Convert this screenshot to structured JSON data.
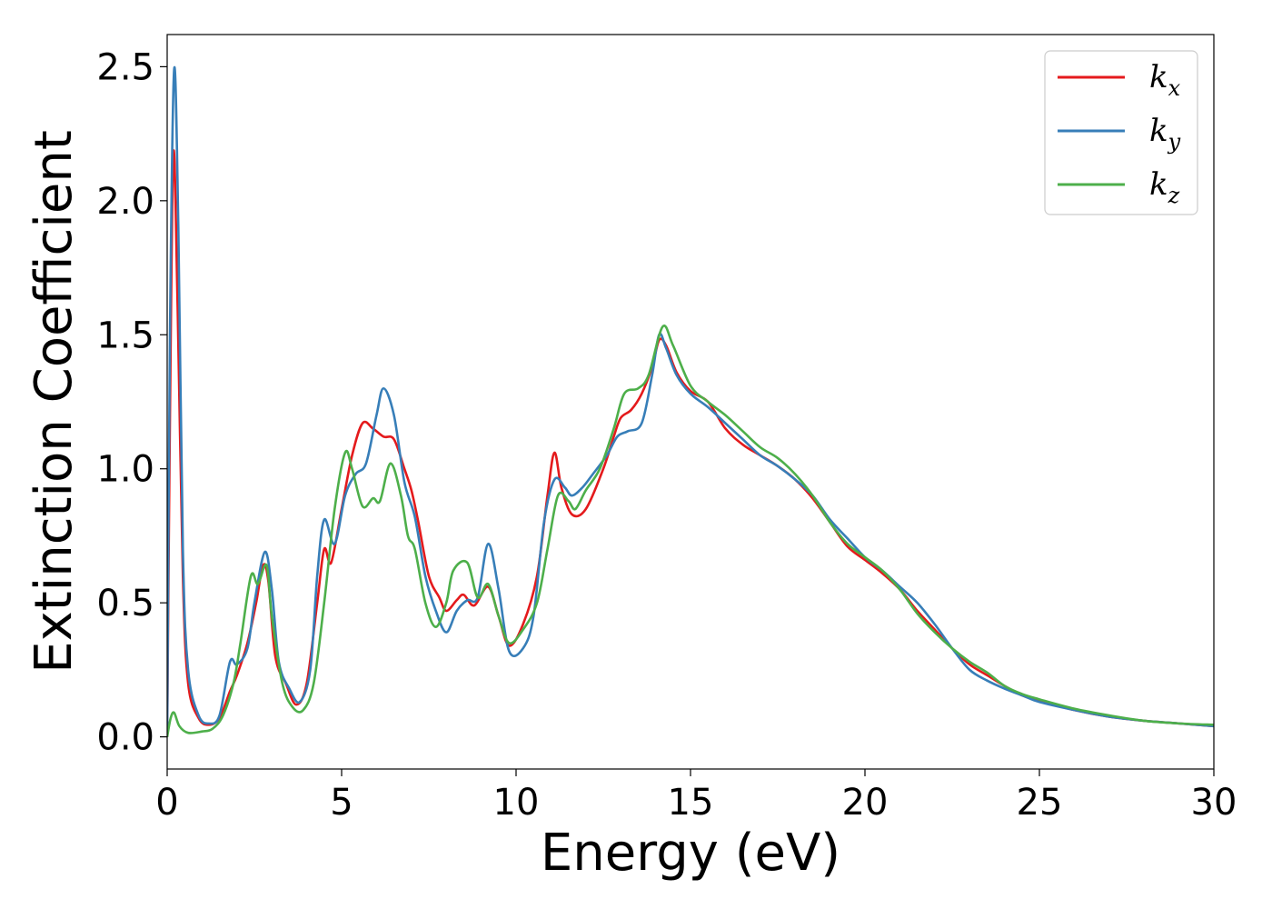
{
  "chart_data": {
    "type": "line",
    "xlabel": "Energy (eV)",
    "ylabel": "Extinction Coefficient",
    "xlim": [
      0,
      30
    ],
    "ylim": [
      -0.12,
      2.62
    ],
    "xticks": [
      0,
      5,
      10,
      15,
      20,
      25,
      30
    ],
    "yticks": [
      0.0,
      0.5,
      1.0,
      1.5,
      2.0,
      2.5
    ],
    "xtick_labels": [
      "0",
      "5",
      "10",
      "15",
      "20",
      "25",
      "30"
    ],
    "ytick_labels": [
      "0.0",
      "0.5",
      "1.0",
      "1.5",
      "2.0",
      "2.5"
    ],
    "grid": false,
    "legend_position": "top-right",
    "series": [
      {
        "name": "k_x",
        "legend_base": "k",
        "legend_sub": "x",
        "color": "#e41a1c",
        "points": [
          [
            0,
            0
          ],
          [
            0.08,
            1.2
          ],
          [
            0.18,
            2.18
          ],
          [
            0.3,
            1.6
          ],
          [
            0.45,
            0.6
          ],
          [
            0.6,
            0.2
          ],
          [
            0.9,
            0.07
          ],
          [
            1.2,
            0.045
          ],
          [
            1.5,
            0.07
          ],
          [
            1.8,
            0.17
          ],
          [
            2.0,
            0.23
          ],
          [
            2.3,
            0.35
          ],
          [
            2.55,
            0.5
          ],
          [
            2.75,
            0.64
          ],
          [
            2.9,
            0.58
          ],
          [
            3.1,
            0.3
          ],
          [
            3.4,
            0.2
          ],
          [
            3.7,
            0.12
          ],
          [
            4.0,
            0.2
          ],
          [
            4.3,
            0.5
          ],
          [
            4.5,
            0.7
          ],
          [
            4.7,
            0.65
          ],
          [
            5.0,
            0.85
          ],
          [
            5.3,
            1.05
          ],
          [
            5.6,
            1.17
          ],
          [
            5.9,
            1.15
          ],
          [
            6.2,
            1.12
          ],
          [
            6.5,
            1.11
          ],
          [
            6.8,
            1.0
          ],
          [
            7.0,
            0.92
          ],
          [
            7.2,
            0.8
          ],
          [
            7.5,
            0.6
          ],
          [
            7.8,
            0.52
          ],
          [
            8.0,
            0.47
          ],
          [
            8.3,
            0.51
          ],
          [
            8.5,
            0.53
          ],
          [
            8.8,
            0.49
          ],
          [
            9.2,
            0.56
          ],
          [
            9.5,
            0.45
          ],
          [
            9.8,
            0.34
          ],
          [
            10.2,
            0.42
          ],
          [
            10.6,
            0.6
          ],
          [
            10.9,
            0.9
          ],
          [
            11.1,
            1.06
          ],
          [
            11.3,
            0.93
          ],
          [
            11.6,
            0.83
          ],
          [
            12.0,
            0.85
          ],
          [
            12.5,
            1.0
          ],
          [
            12.8,
            1.12
          ],
          [
            13.0,
            1.19
          ],
          [
            13.3,
            1.22
          ],
          [
            13.6,
            1.28
          ],
          [
            13.9,
            1.38
          ],
          [
            14.1,
            1.48
          ],
          [
            14.3,
            1.46
          ],
          [
            14.6,
            1.36
          ],
          [
            15.0,
            1.29
          ],
          [
            15.5,
            1.25
          ],
          [
            16.0,
            1.15
          ],
          [
            16.5,
            1.09
          ],
          [
            17.0,
            1.05
          ],
          [
            17.5,
            1.01
          ],
          [
            18.0,
            0.96
          ],
          [
            18.5,
            0.89
          ],
          [
            19.0,
            0.8
          ],
          [
            19.5,
            0.71
          ],
          [
            20.0,
            0.66
          ],
          [
            20.5,
            0.61
          ],
          [
            21.0,
            0.55
          ],
          [
            21.5,
            0.47
          ],
          [
            22.0,
            0.4
          ],
          [
            22.5,
            0.33
          ],
          [
            23.0,
            0.27
          ],
          [
            23.5,
            0.23
          ],
          [
            24.0,
            0.19
          ],
          [
            24.5,
            0.155
          ],
          [
            25.0,
            0.135
          ],
          [
            26.0,
            0.1
          ],
          [
            27.0,
            0.075
          ],
          [
            28.0,
            0.06
          ],
          [
            29.0,
            0.05
          ],
          [
            30.0,
            0.04
          ]
        ]
      },
      {
        "name": "k_y",
        "legend_base": "k",
        "legend_sub": "y",
        "color": "#377eb8",
        "points": [
          [
            0,
            0
          ],
          [
            0.08,
            1.5
          ],
          [
            0.2,
            2.49
          ],
          [
            0.32,
            1.9
          ],
          [
            0.45,
            0.7
          ],
          [
            0.6,
            0.25
          ],
          [
            0.9,
            0.08
          ],
          [
            1.2,
            0.05
          ],
          [
            1.5,
            0.08
          ],
          [
            1.8,
            0.28
          ],
          [
            2.0,
            0.27
          ],
          [
            2.3,
            0.33
          ],
          [
            2.5,
            0.5
          ],
          [
            2.8,
            0.69
          ],
          [
            3.0,
            0.55
          ],
          [
            3.2,
            0.28
          ],
          [
            3.5,
            0.18
          ],
          [
            3.8,
            0.13
          ],
          [
            4.1,
            0.25
          ],
          [
            4.3,
            0.6
          ],
          [
            4.5,
            0.81
          ],
          [
            4.8,
            0.72
          ],
          [
            5.1,
            0.9
          ],
          [
            5.4,
            0.98
          ],
          [
            5.7,
            1.02
          ],
          [
            6.0,
            1.2
          ],
          [
            6.2,
            1.3
          ],
          [
            6.5,
            1.2
          ],
          [
            6.8,
            0.95
          ],
          [
            7.1,
            0.82
          ],
          [
            7.4,
            0.6
          ],
          [
            7.7,
            0.47
          ],
          [
            8.0,
            0.39
          ],
          [
            8.3,
            0.47
          ],
          [
            8.6,
            0.51
          ],
          [
            8.9,
            0.52
          ],
          [
            9.2,
            0.72
          ],
          [
            9.5,
            0.55
          ],
          [
            9.8,
            0.32
          ],
          [
            10.2,
            0.33
          ],
          [
            10.5,
            0.45
          ],
          [
            10.8,
            0.8
          ],
          [
            11.1,
            0.96
          ],
          [
            11.4,
            0.93
          ],
          [
            11.6,
            0.9
          ],
          [
            11.9,
            0.93
          ],
          [
            12.2,
            0.98
          ],
          [
            12.6,
            1.05
          ],
          [
            12.9,
            1.12
          ],
          [
            13.2,
            1.14
          ],
          [
            13.6,
            1.17
          ],
          [
            13.9,
            1.35
          ],
          [
            14.1,
            1.5
          ],
          [
            14.3,
            1.45
          ],
          [
            14.6,
            1.35
          ],
          [
            15.0,
            1.28
          ],
          [
            15.5,
            1.23
          ],
          [
            16.0,
            1.17
          ],
          [
            16.5,
            1.11
          ],
          [
            17.0,
            1.05
          ],
          [
            17.5,
            1.01
          ],
          [
            18.0,
            0.96
          ],
          [
            18.5,
            0.9
          ],
          [
            19.0,
            0.81
          ],
          [
            19.5,
            0.74
          ],
          [
            20.0,
            0.67
          ],
          [
            20.5,
            0.62
          ],
          [
            21.0,
            0.56
          ],
          [
            21.5,
            0.5
          ],
          [
            22.0,
            0.42
          ],
          [
            22.5,
            0.33
          ],
          [
            23.0,
            0.25
          ],
          [
            23.5,
            0.21
          ],
          [
            24.0,
            0.18
          ],
          [
            24.5,
            0.155
          ],
          [
            25.0,
            0.13
          ],
          [
            26.0,
            0.1
          ],
          [
            27.0,
            0.075
          ],
          [
            28.0,
            0.06
          ],
          [
            29.0,
            0.05
          ],
          [
            30.0,
            0.04
          ]
        ]
      },
      {
        "name": "k_z",
        "legend_base": "k",
        "legend_sub": "z",
        "color": "#4daf4a",
        "points": [
          [
            0,
            0
          ],
          [
            0.1,
            0.07
          ],
          [
            0.2,
            0.09
          ],
          [
            0.35,
            0.04
          ],
          [
            0.6,
            0.015
          ],
          [
            1.0,
            0.02
          ],
          [
            1.3,
            0.03
          ],
          [
            1.6,
            0.08
          ],
          [
            1.9,
            0.2
          ],
          [
            2.1,
            0.35
          ],
          [
            2.4,
            0.6
          ],
          [
            2.6,
            0.57
          ],
          [
            2.85,
            0.64
          ],
          [
            3.0,
            0.45
          ],
          [
            3.3,
            0.2
          ],
          [
            3.6,
            0.11
          ],
          [
            3.9,
            0.1
          ],
          [
            4.2,
            0.2
          ],
          [
            4.5,
            0.5
          ],
          [
            4.8,
            0.85
          ],
          [
            5.1,
            1.06
          ],
          [
            5.3,
            1.0
          ],
          [
            5.6,
            0.86
          ],
          [
            5.9,
            0.89
          ],
          [
            6.1,
            0.88
          ],
          [
            6.4,
            1.02
          ],
          [
            6.7,
            0.9
          ],
          [
            6.9,
            0.75
          ],
          [
            7.1,
            0.7
          ],
          [
            7.4,
            0.5
          ],
          [
            7.7,
            0.41
          ],
          [
            8.0,
            0.5
          ],
          [
            8.2,
            0.62
          ],
          [
            8.6,
            0.65
          ],
          [
            8.9,
            0.52
          ],
          [
            9.2,
            0.57
          ],
          [
            9.5,
            0.45
          ],
          [
            9.8,
            0.35
          ],
          [
            10.2,
            0.4
          ],
          [
            10.6,
            0.5
          ],
          [
            10.9,
            0.7
          ],
          [
            11.2,
            0.9
          ],
          [
            11.5,
            0.88
          ],
          [
            11.7,
            0.85
          ],
          [
            12.0,
            0.92
          ],
          [
            12.4,
            1.0
          ],
          [
            12.8,
            1.15
          ],
          [
            13.1,
            1.28
          ],
          [
            13.5,
            1.3
          ],
          [
            13.8,
            1.35
          ],
          [
            14.2,
            1.53
          ],
          [
            14.5,
            1.46
          ],
          [
            15.0,
            1.31
          ],
          [
            15.5,
            1.25
          ],
          [
            16.0,
            1.2
          ],
          [
            16.5,
            1.14
          ],
          [
            17.0,
            1.08
          ],
          [
            17.5,
            1.04
          ],
          [
            18.0,
            0.98
          ],
          [
            18.5,
            0.9
          ],
          [
            19.0,
            0.8
          ],
          [
            19.5,
            0.72
          ],
          [
            20.0,
            0.67
          ],
          [
            20.5,
            0.62
          ],
          [
            21.0,
            0.55
          ],
          [
            21.5,
            0.46
          ],
          [
            22.0,
            0.39
          ],
          [
            22.5,
            0.33
          ],
          [
            23.0,
            0.28
          ],
          [
            23.5,
            0.24
          ],
          [
            24.0,
            0.19
          ],
          [
            24.5,
            0.16
          ],
          [
            25.0,
            0.14
          ],
          [
            26.0,
            0.105
          ],
          [
            27.0,
            0.08
          ],
          [
            28.0,
            0.06
          ],
          [
            29.0,
            0.05
          ],
          [
            30.0,
            0.045
          ]
        ]
      }
    ]
  }
}
